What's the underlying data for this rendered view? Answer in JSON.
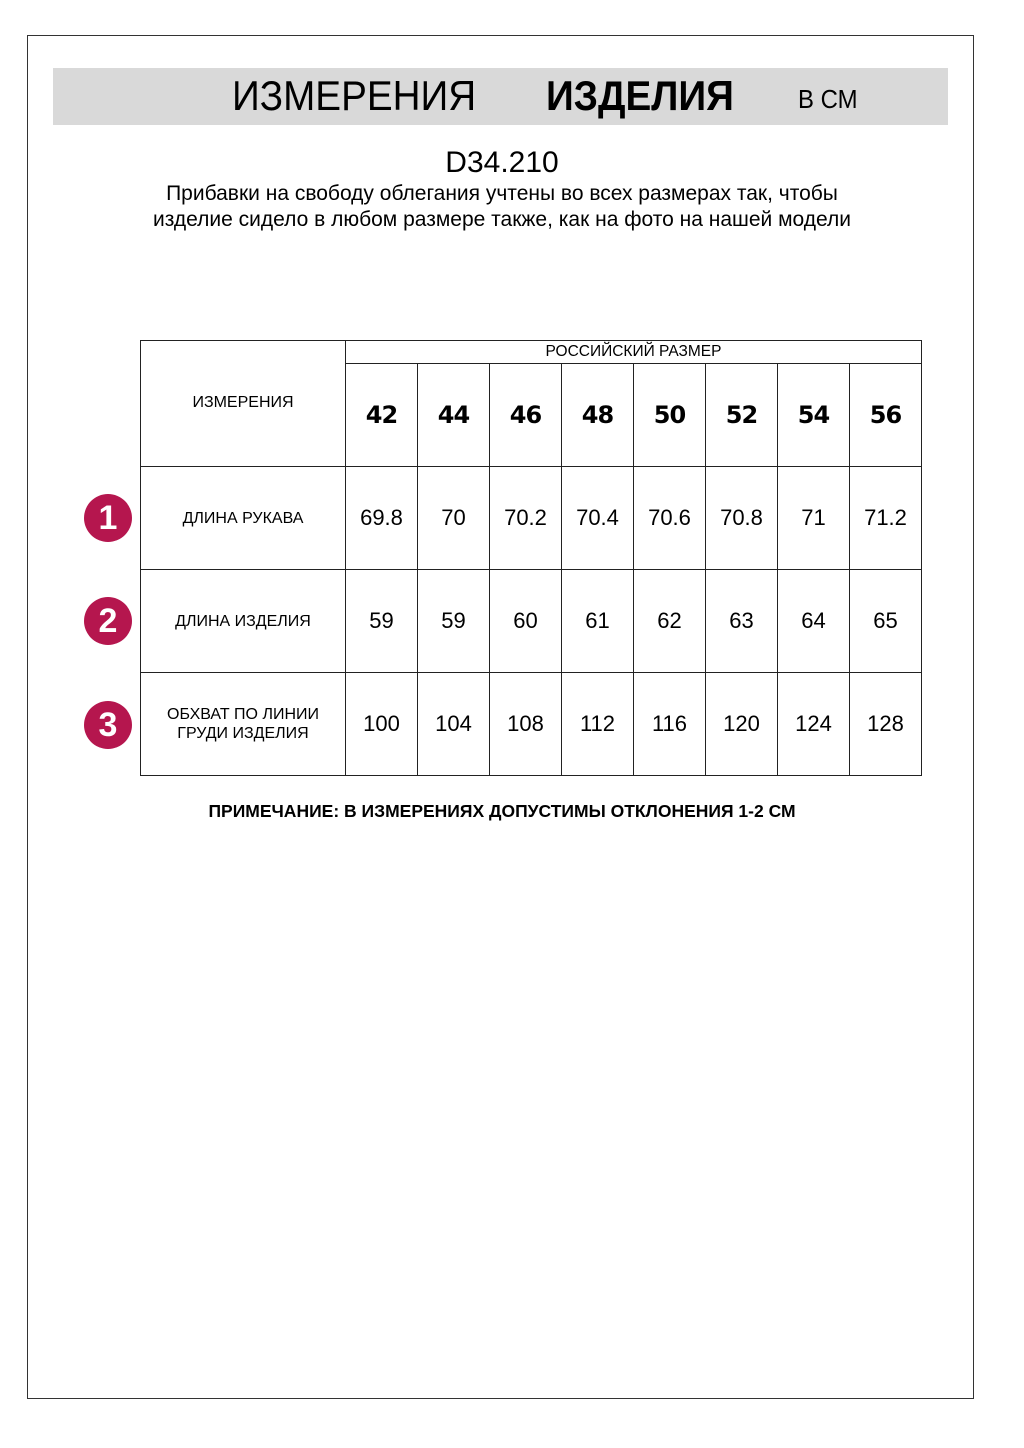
{
  "header": {
    "title_light": "ИЗМЕРЕНИЯ",
    "title_bold": "ИЗДЕЛИЯ",
    "unit": "В СМ"
  },
  "product_code": "D34.210",
  "description": "Прибавки на свободу облегания учтены во всех размерах так, чтобы изделие сидело в любом размере также, как на фото на нашей модели",
  "table": {
    "measurements_header": "ИЗМЕРЕНИЯ",
    "size_group_header": "РОССИЙСКИЙ РАЗМЕР",
    "sizes": [
      "42",
      "44",
      "46",
      "48",
      "50",
      "52",
      "54",
      "56"
    ],
    "rows": [
      {
        "badge": "1",
        "label": "ДЛИНА РУКАВА",
        "values": [
          "69.8",
          "70",
          "70.2",
          "70.4",
          "70.6",
          "70.8",
          "71",
          "71.2"
        ]
      },
      {
        "badge": "2",
        "label": "ДЛИНА ИЗДЕЛИЯ",
        "values": [
          "59",
          "59",
          "60",
          "61",
          "62",
          "63",
          "64",
          "65"
        ]
      },
      {
        "badge": "3",
        "label": "ОБХВАТ ПО ЛИНИИ ГРУДИ ИЗДЕЛИЯ",
        "values": [
          "100",
          "104",
          "108",
          "112",
          "116",
          "120",
          "124",
          "128"
        ]
      }
    ]
  },
  "note": "ПРИМЕЧАНИЕ: В ИЗМЕРЕНИЯХ ДОПУСТИМЫ ОТКЛОНЕНИЯ 1-2 СМ",
  "colors": {
    "badge": "#b5164e",
    "header_band": "#d9d9d9"
  }
}
